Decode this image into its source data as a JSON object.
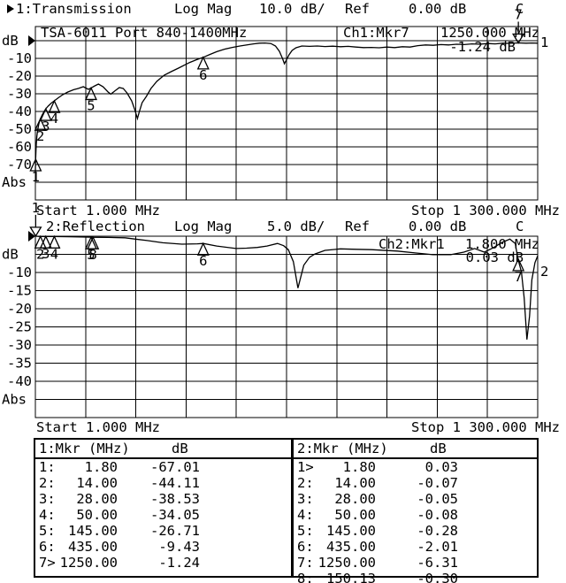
{
  "colors": {
    "foreground": "#000000",
    "background": "#ffffff"
  },
  "chart_data": [
    {
      "type": "line",
      "title": "TSA-6011 Port 840-1400MHz",
      "header": {
        "trace_label": "1:Transmission",
        "format": "Log Mag",
        "scale": "10.0 dB/",
        "ref_label": "Ref",
        "ref_value": "0.00 dB",
        "cal": "C"
      },
      "overlay": {
        "readout_label": "Ch1:Mkr7",
        "readout_freq": "1250.000 MHz",
        "readout_value": "-1.24 dB"
      },
      "channel_number": "1",
      "x_axis": {
        "start_label": "Start 1.000 MHz",
        "stop_label": "Stop 1 300.000 MHz",
        "start_mhz": 1,
        "stop_mhz": 1300,
        "scale": "linear",
        "divisions": 10
      },
      "y_axis": {
        "unit": "dB",
        "ref_db": 0,
        "db_per_div": 10,
        "ylim": [
          -90,
          0
        ],
        "labels": [
          [
            "dB",
            0
          ],
          [
            "-10",
            -10
          ],
          [
            "-20",
            -20
          ],
          [
            "-30",
            -30
          ],
          [
            "-40",
            -40
          ],
          [
            "-50",
            -50
          ],
          [
            "-60",
            -60
          ],
          [
            "-70",
            -70
          ],
          [
            "Abs",
            -80
          ]
        ]
      },
      "markers": [
        {
          "n": "1",
          "mhz": 1.8,
          "db": -67.01,
          "style": "triangle"
        },
        {
          "n": "2",
          "mhz": 14,
          "db": -44.11,
          "style": "triangle"
        },
        {
          "n": "3",
          "mhz": 28,
          "db": -38.53,
          "style": "triangle"
        },
        {
          "n": "4",
          "mhz": 50,
          "db": -34.05,
          "style": "triangle"
        },
        {
          "n": "5",
          "mhz": 145,
          "db": -26.71,
          "style": "triangle"
        },
        {
          "n": "6",
          "mhz": 435,
          "db": -9.43,
          "style": "triangle"
        },
        {
          "n": "7",
          "mhz": 1250,
          "db": -1.24,
          "style": "arrow"
        }
      ],
      "trace": [
        [
          1,
          -74
        ],
        [
          1.3,
          -71
        ],
        [
          1.8,
          -67
        ],
        [
          2.5,
          -62
        ],
        [
          3.5,
          -58
        ],
        [
          5,
          -54
        ],
        [
          7,
          -50.5
        ],
        [
          10,
          -47
        ],
        [
          14,
          -44.1
        ],
        [
          19,
          -41.8
        ],
        [
          24,
          -39.8
        ],
        [
          28,
          -38.5
        ],
        [
          34,
          -37
        ],
        [
          42,
          -35.3
        ],
        [
          50,
          -34
        ],
        [
          60,
          -32.3
        ],
        [
          72,
          -30.5
        ],
        [
          85,
          -29
        ],
        [
          100,
          -27.7
        ],
        [
          112,
          -27
        ],
        [
          125,
          -26
        ],
        [
          138,
          -27.5
        ],
        [
          145,
          -26.7
        ],
        [
          155,
          -25.5
        ],
        [
          164,
          -24.5
        ],
        [
          176,
          -26
        ],
        [
          189,
          -29
        ],
        [
          196,
          -30.2
        ],
        [
          206,
          -28.5
        ],
        [
          218,
          -26.5
        ],
        [
          228,
          -27
        ],
        [
          238,
          -29.5
        ],
        [
          250,
          -34
        ],
        [
          258,
          -39
        ],
        [
          265,
          -44
        ],
        [
          270,
          -40
        ],
        [
          277,
          -35
        ],
        [
          288,
          -31.5
        ],
        [
          300,
          -27
        ],
        [
          315,
          -23
        ],
        [
          334,
          -19.5
        ],
        [
          352,
          -17.5
        ],
        [
          371,
          -15.5
        ],
        [
          400,
          -12.3
        ],
        [
          417,
          -10.8
        ],
        [
          435,
          -9.4
        ],
        [
          452,
          -7.8
        ],
        [
          470,
          -6.2
        ],
        [
          490,
          -4.8
        ],
        [
          510,
          -3.8
        ],
        [
          530,
          -3
        ],
        [
          550,
          -2.3
        ],
        [
          565,
          -1.8
        ],
        [
          580,
          -1.4
        ],
        [
          595,
          -1.3
        ],
        [
          610,
          -1.6
        ],
        [
          622,
          -3
        ],
        [
          632,
          -6
        ],
        [
          640,
          -10
        ],
        [
          645,
          -13
        ],
        [
          650,
          -11
        ],
        [
          657,
          -8
        ],
        [
          665,
          -5.5
        ],
        [
          675,
          -4
        ],
        [
          690,
          -3
        ],
        [
          710,
          -3.2
        ],
        [
          730,
          -3
        ],
        [
          750,
          -3.3
        ],
        [
          770,
          -3.1
        ],
        [
          790,
          -3.4
        ],
        [
          810,
          -3.2
        ],
        [
          830,
          -3.6
        ],
        [
          850,
          -3.9
        ],
        [
          870,
          -3.8
        ],
        [
          890,
          -4
        ],
        [
          910,
          -3.6
        ],
        [
          930,
          -3.9
        ],
        [
          950,
          -3.4
        ],
        [
          970,
          -3.6
        ],
        [
          990,
          -2.8
        ],
        [
          1010,
          -2.4
        ],
        [
          1030,
          -2.6
        ],
        [
          1050,
          -2.2
        ],
        [
          1070,
          -2.4
        ],
        [
          1090,
          -2
        ],
        [
          1110,
          -2.2
        ],
        [
          1130,
          -1.8
        ],
        [
          1150,
          -2
        ],
        [
          1170,
          -1.6
        ],
        [
          1190,
          -1.8
        ],
        [
          1210,
          -1.4
        ],
        [
          1230,
          -1.5
        ],
        [
          1250,
          -1.24
        ],
        [
          1270,
          -1.4
        ],
        [
          1285,
          -1.3
        ],
        [
          1300,
          -1.4
        ]
      ]
    },
    {
      "type": "line",
      "title": "",
      "header": {
        "trace_label": "2:Reflection",
        "format": "Log Mag",
        "scale": "5.0 dB/",
        "ref_label": "Ref",
        "ref_value": "0.00 dB",
        "cal": "C"
      },
      "overlay": {
        "readout_label": "Ch2:Mkr1",
        "readout_freq": "1.800 MHz",
        "readout_value": "0.03 dB"
      },
      "channel_number": "2",
      "x_axis": {
        "start_label": "Start 1.000 MHz",
        "stop_label": "Stop 1 300.000 MHz",
        "start_mhz": 1,
        "stop_mhz": 1300,
        "scale": "linear",
        "divisions": 10
      },
      "y_axis": {
        "unit": "dB",
        "ref_db": 0,
        "db_per_div": 5,
        "ylim": [
          -50,
          0
        ],
        "labels": [
          [
            "dB",
            -5
          ],
          [
            "-10",
            -10
          ],
          [
            "-15",
            -15
          ],
          [
            "-20",
            -20
          ],
          [
            "-25",
            -25
          ],
          [
            "-30",
            -30
          ],
          [
            "-35",
            -35
          ],
          [
            "-40",
            -40
          ],
          [
            "Abs",
            -45
          ]
        ]
      },
      "markers": [
        {
          "n": "1",
          "mhz": 1.8,
          "db": 0.03,
          "style": "arrow"
        },
        {
          "n": "2",
          "mhz": 14,
          "db": -0.07,
          "style": "triangle"
        },
        {
          "n": "3",
          "mhz": 28,
          "db": -0.05,
          "style": "triangle"
        },
        {
          "n": "4",
          "mhz": 50,
          "db": -0.08,
          "style": "triangle"
        },
        {
          "n": "5",
          "mhz": 145,
          "db": -0.28,
          "style": "triangle"
        },
        {
          "n": "6",
          "mhz": 435,
          "db": -2.01,
          "style": "triangle"
        },
        {
          "n": "7",
          "mhz": 1250,
          "db": -6.31,
          "style": "triangle"
        },
        {
          "n": "8",
          "mhz": 150.13,
          "db": -0.3,
          "style": "triangle"
        }
      ],
      "trace": [
        [
          1,
          -0.04
        ],
        [
          1.8,
          0.03
        ],
        [
          14,
          -0.07
        ],
        [
          28,
          -0.05
        ],
        [
          50,
          -0.08
        ],
        [
          90,
          -0.15
        ],
        [
          145,
          -0.28
        ],
        [
          150.13,
          -0.3
        ],
        [
          190,
          -0.35
        ],
        [
          233,
          -0.45
        ],
        [
          260,
          -0.8
        ],
        [
          290,
          -1.2
        ],
        [
          330,
          -1.8
        ],
        [
          380,
          -2.2
        ],
        [
          420,
          -2.1
        ],
        [
          435,
          -2.01
        ],
        [
          470,
          -2.7
        ],
        [
          520,
          -3.4
        ],
        [
          547,
          -3.3
        ],
        [
          575,
          -3.1
        ],
        [
          600,
          -2.7
        ],
        [
          627,
          -2
        ],
        [
          643,
          -2.6
        ],
        [
          655,
          -3.7
        ],
        [
          668,
          -7
        ],
        [
          680,
          -14.3
        ],
        [
          695,
          -8
        ],
        [
          710,
          -5.8
        ],
        [
          724,
          -4.9
        ],
        [
          750,
          -3.9
        ],
        [
          790,
          -3.5
        ],
        [
          830,
          -3.6
        ],
        [
          870,
          -3.7
        ],
        [
          937,
          -4.1
        ],
        [
          983,
          -4.6
        ],
        [
          1029,
          -5.1
        ],
        [
          1075,
          -5.1
        ],
        [
          1109,
          -4.4
        ],
        [
          1137,
          -3.4
        ],
        [
          1162,
          -4.4
        ],
        [
          1185,
          -3.2
        ],
        [
          1208,
          -1.7
        ],
        [
          1228,
          -0.8
        ],
        [
          1242,
          -2
        ],
        [
          1249,
          -6.31
        ],
        [
          1258,
          -9.8
        ],
        [
          1265,
          -17
        ],
        [
          1272,
          -28.5
        ],
        [
          1279,
          -22
        ],
        [
          1285,
          -12
        ],
        [
          1293,
          -7.3
        ],
        [
          1300,
          -5.4
        ]
      ]
    }
  ],
  "tables": [
    {
      "header_label": "1:Mkr (MHz)",
      "header_unit": "dB",
      "rows": [
        [
          "1",
          ":",
          "1.80",
          "-67.01"
        ],
        [
          "2",
          ":",
          "14.00",
          "-44.11"
        ],
        [
          "3",
          ":",
          "28.00",
          "-38.53"
        ],
        [
          "4",
          ":",
          "50.00",
          "-34.05"
        ],
        [
          "5",
          ":",
          "145.00",
          "-26.71"
        ],
        [
          "6",
          ":",
          "435.00",
          "-9.43"
        ],
        [
          "7",
          ">",
          "1250.00",
          "-1.24"
        ]
      ]
    },
    {
      "header_label": "2:Mkr (MHz)",
      "header_unit": "dB",
      "rows": [
        [
          "1",
          ">",
          "1.80",
          "0.03"
        ],
        [
          "2",
          ":",
          "14.00",
          "-0.07"
        ],
        [
          "3",
          ":",
          "28.00",
          "-0.05"
        ],
        [
          "4",
          ":",
          "50.00",
          "-0.08"
        ],
        [
          "5",
          ":",
          "145.00",
          "-0.28"
        ],
        [
          "6",
          ":",
          "435.00",
          "-2.01"
        ],
        [
          "7",
          ":",
          "1250.00",
          "-6.31"
        ],
        [
          "8",
          ":",
          "150.13",
          "-0.30"
        ]
      ]
    }
  ]
}
